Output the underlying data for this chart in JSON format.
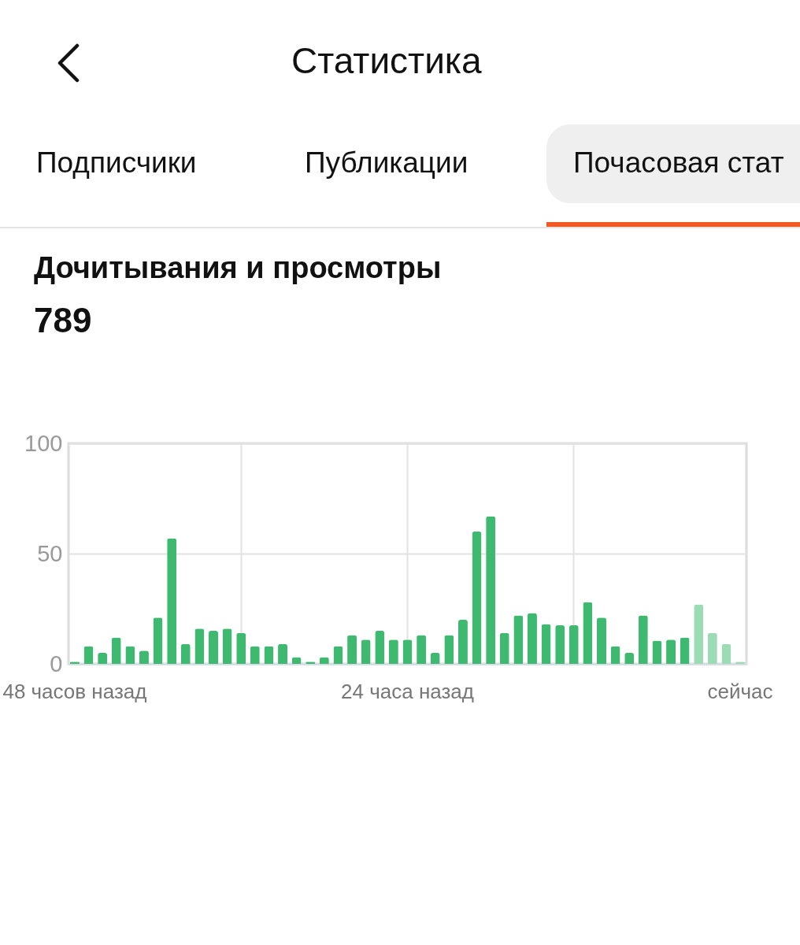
{
  "chart_data": {
    "type": "bar",
    "title": "Дочитывания и просмотры",
    "subtitle": "789",
    "annotations": [
      "Статистика",
      "Подписчики",
      "Публикации",
      "Почасовая стат"
    ],
    "categories": [
      "48 часов назад",
      null,
      null,
      null,
      null,
      null,
      null,
      null,
      null,
      null,
      null,
      null,
      null,
      null,
      null,
      null,
      null,
      null,
      null,
      null,
      null,
      null,
      null,
      null,
      "24 часа назад",
      null,
      null,
      null,
      null,
      null,
      null,
      null,
      null,
      null,
      null,
      null,
      null,
      null,
      null,
      null,
      null,
      null,
      null,
      null,
      null,
      null,
      null,
      null,
      "сейчас"
    ],
    "values": [
      1,
      8,
      5,
      12,
      8,
      6,
      21,
      57,
      9,
      16,
      15,
      16,
      14,
      8,
      8,
      9,
      3,
      1,
      3,
      8,
      13,
      11,
      15,
      11,
      11,
      13,
      5,
      13,
      20,
      60,
      67,
      14,
      22,
      23,
      18,
      17.5,
      17.5,
      28,
      21,
      8,
      5,
      22,
      10.5,
      11,
      12,
      27,
      14,
      9,
      1
    ],
    "colors": [
      "#3dba6f",
      "#3dba6f",
      "#3dba6f",
      "#3dba6f",
      "#3dba6f",
      "#3dba6f",
      "#3dba6f",
      "#3dba6f",
      "#3dba6f",
      "#3dba6f",
      "#3dba6f",
      "#3dba6f",
      "#3dba6f",
      "#3dba6f",
      "#3dba6f",
      "#3dba6f",
      "#3dba6f",
      "#3dba6f",
      "#3dba6f",
      "#3dba6f",
      "#3dba6f",
      "#3dba6f",
      "#3dba6f",
      "#3dba6f",
      "#3dba6f",
      "#3dba6f",
      "#3dba6f",
      "#3dba6f",
      "#3dba6f",
      "#3dba6f",
      "#3dba6f",
      "#3dba6f",
      "#3dba6f",
      "#3dba6f",
      "#3dba6f",
      "#3dba6f",
      "#3dba6f",
      "#3dba6f",
      "#3dba6f",
      "#3dba6f",
      "#3dba6f",
      "#3dba6f",
      "#3dba6f",
      "#3dba6f",
      "#3dba6f",
      "#9bdcb5",
      "#9bdcb5",
      "#9bdcb5",
      "#9bdcb5"
    ],
    "ylim": [
      0,
      100
    ],
    "yticks": [
      0,
      50,
      100
    ],
    "grid": true
  }
}
